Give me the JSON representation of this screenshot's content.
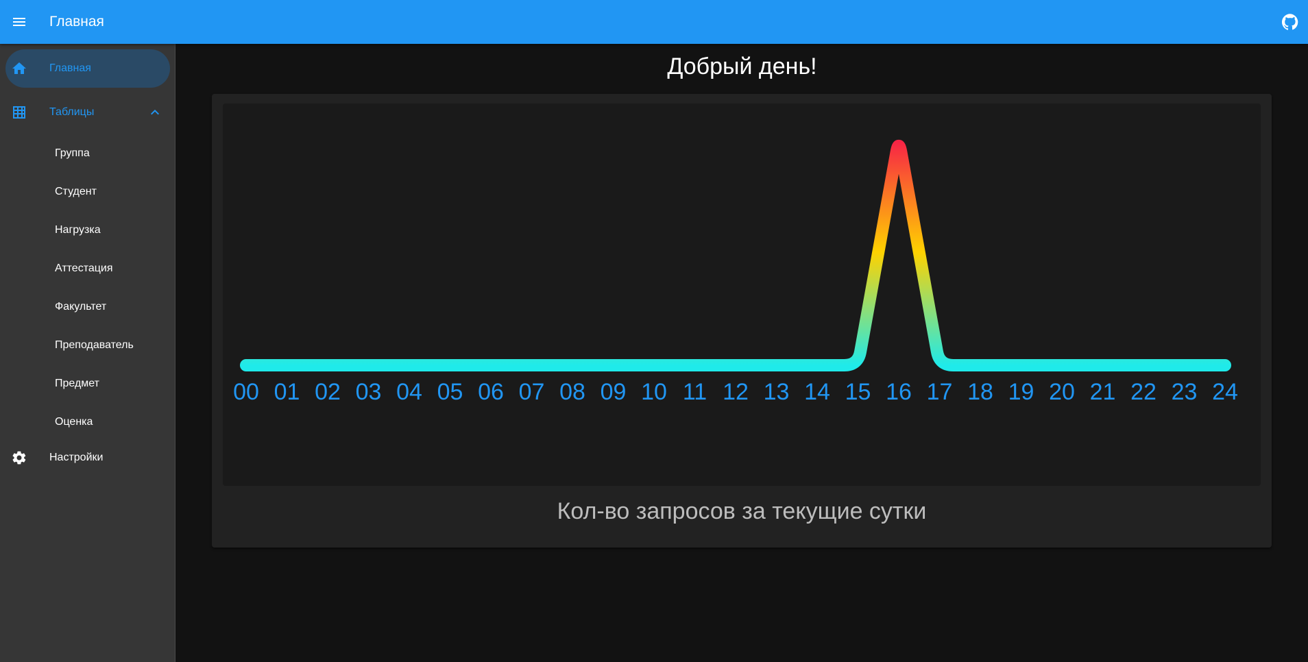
{
  "appbar": {
    "title": "Главная",
    "menu_icon": "menu-icon",
    "github_icon": "github-icon",
    "color": "#2196f3"
  },
  "sidebar": {
    "items": [
      {
        "label": "Главная",
        "icon": "home-icon",
        "active": true
      },
      {
        "label": "Таблицы",
        "icon": "table-icon",
        "expanded": true
      },
      {
        "label": "Настройки",
        "icon": "gear-icon"
      }
    ],
    "tables": [
      "Группа",
      "Студент",
      "Нагрузка",
      "Аттестация",
      "Факультет",
      "Преподаватель",
      "Предмет",
      "Оценка"
    ]
  },
  "main": {
    "greeting": "Добрый день!",
    "chart_caption": "Кол-во запросов за текущие сутки"
  },
  "chart_data": {
    "type": "line",
    "title": "Кол-во запросов за текущие сутки",
    "categories": [
      "00",
      "01",
      "02",
      "03",
      "04",
      "05",
      "06",
      "07",
      "08",
      "09",
      "10",
      "11",
      "12",
      "13",
      "14",
      "15",
      "16",
      "17",
      "18",
      "19",
      "20",
      "21",
      "22",
      "23",
      "24"
    ],
    "values": [
      0,
      0,
      0,
      0,
      0,
      0,
      0,
      0,
      0,
      0,
      0,
      0,
      0,
      0,
      0,
      0,
      1,
      0,
      0,
      0,
      0,
      0,
      0,
      0,
      0
    ],
    "ylim": [
      0,
      1
    ],
    "grid": false,
    "gradient_colors": [
      "#1feaea",
      "#ffd200",
      "#f72047"
    ],
    "label_color": "#2196f3"
  }
}
